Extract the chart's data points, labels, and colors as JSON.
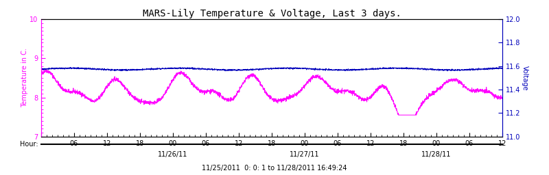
{
  "title": "MARS-Lily Temperature & Voltage, Last 3 days.",
  "ylabel_left": "Temperature in C.",
  "ylabel_right": "Voltage",
  "xlabel_hour": "Hour:",
  "date_labels": [
    "11/26/11",
    "11/27/11",
    "11/28/11"
  ],
  "bottom_label": "11/25/2011  0: 0: 1 to 11/28/2011 16:49:24",
  "hour_ticks": [
    0,
    6,
    12,
    18,
    24,
    30,
    36,
    42,
    48,
    54,
    60,
    66,
    72,
    78,
    84
  ],
  "hour_tick_labels": [
    "",
    "06",
    "12",
    "18",
    "00",
    "06",
    "12",
    "18",
    "00",
    "06",
    "12",
    "18",
    "00",
    "06",
    "12"
  ],
  "temp_ylim": [
    7.0,
    10.0
  ],
  "temp_yticks": [
    7,
    8,
    9,
    10
  ],
  "voltage_ylim": [
    11.0,
    12.0
  ],
  "voltage_yticks": [
    11.0,
    11.2,
    11.4,
    11.6,
    11.8,
    12.0
  ],
  "temp_color": "#FF00FF",
  "voltage_color": "#0000BB",
  "bg_color": "#FFFFFF",
  "title_color": "#000000",
  "title_fontsize": 10,
  "axis_label_color_left": "#FF00FF",
  "axis_label_color_right": "#0000BB",
  "voltage_value": 11.575,
  "xlim": [
    0,
    84
  ],
  "noise_seed": 42
}
